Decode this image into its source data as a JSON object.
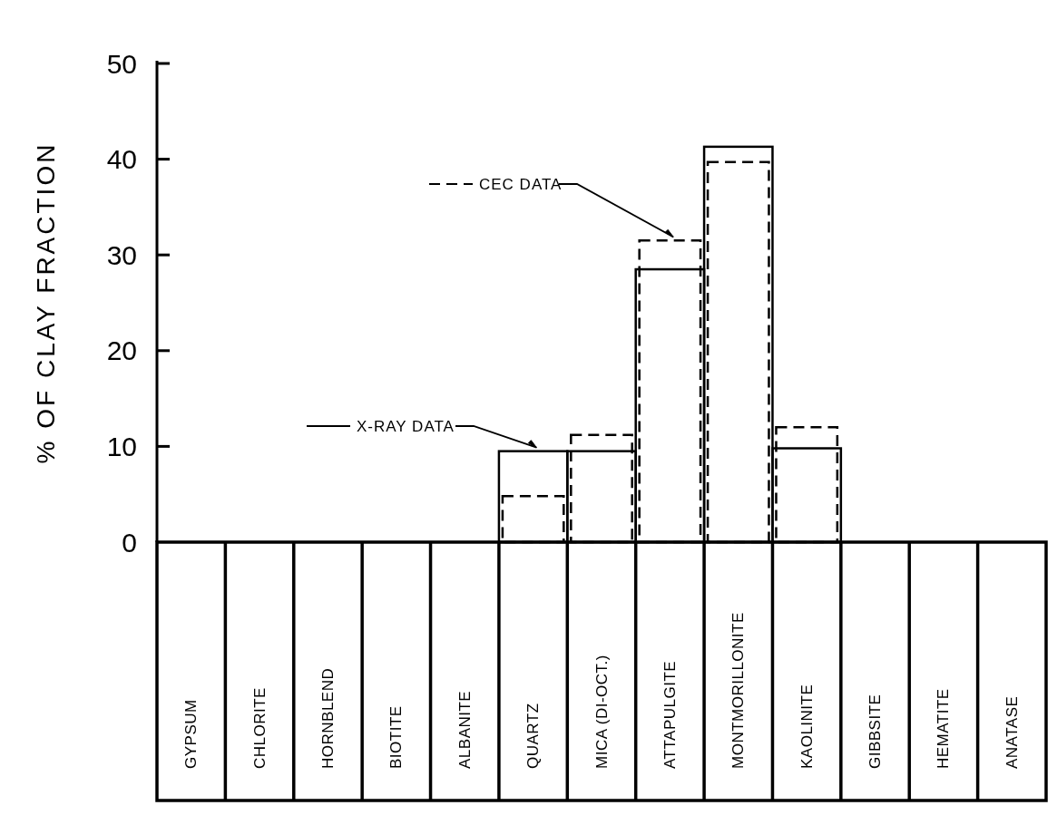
{
  "chart_data": {
    "type": "bar",
    "ylabel": "% OF CLAY FRACTION",
    "categories": [
      "GYPSUM",
      "CHLORITE",
      "HORNBLEND",
      "BIOTITE",
      "ALBANITE",
      "QUARTZ",
      "MICA (DI-OCT.)",
      "ATTAPULGITE",
      "MONTMORILLONITE",
      "KAOLINITE",
      "GIBBSITE",
      "HEMATITE",
      "ANATASE"
    ],
    "series": [
      {
        "name": "X-RAY DATA",
        "color": "#000000",
        "line_style": "solid",
        "values": [
          0,
          0,
          0,
          0,
          0,
          9.5,
          9.5,
          28.5,
          41.3,
          9.8,
          0,
          0,
          0
        ]
      },
      {
        "name": "CEC DATA",
        "color": "#000000",
        "line_style": "dashed",
        "values": [
          0,
          0,
          0,
          0,
          0,
          4.8,
          11.2,
          31.5,
          39.7,
          12,
          0,
          0,
          0
        ]
      }
    ],
    "ylim": [
      0,
      50
    ],
    "yticks": [
      0,
      10,
      20,
      30,
      40,
      50
    ],
    "grid": false,
    "legend": "left"
  }
}
